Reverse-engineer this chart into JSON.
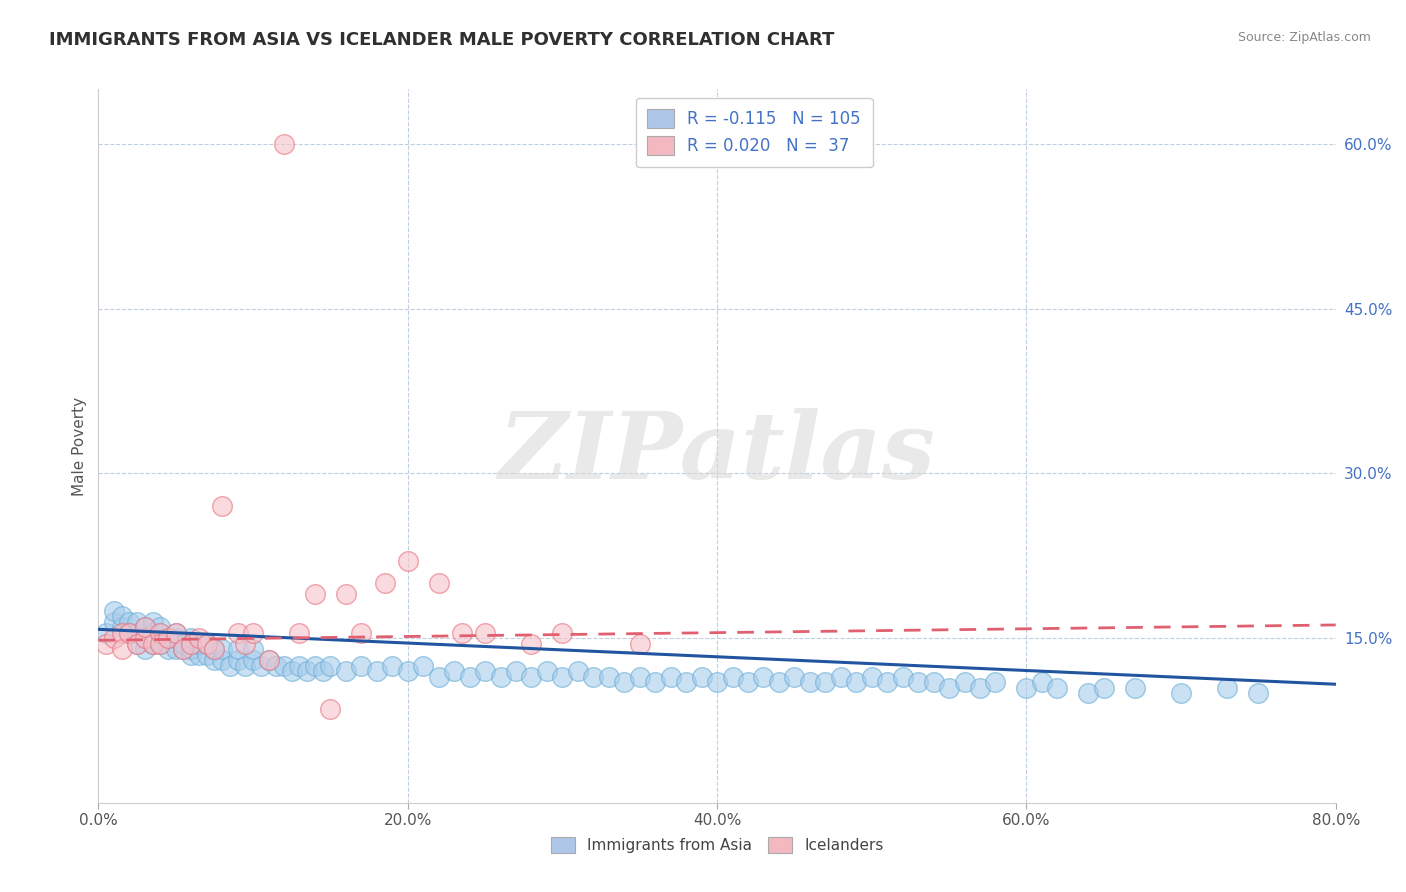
{
  "title": "IMMIGRANTS FROM ASIA VS ICELANDER MALE POVERTY CORRELATION CHART",
  "source_text": "Source: ZipAtlas.com",
  "ylabel": "Male Poverty",
  "xlim": [
    0.0,
    0.8
  ],
  "ylim": [
    0.0,
    0.65
  ],
  "xtick_labels": [
    "0.0%",
    "20.0%",
    "40.0%",
    "60.0%",
    "80.0%"
  ],
  "xtick_vals": [
    0.0,
    0.2,
    0.4,
    0.6,
    0.8
  ],
  "ytick_right_labels": [
    "15.0%",
    "30.0%",
    "45.0%",
    "60.0%"
  ],
  "ytick_right_vals": [
    0.15,
    0.3,
    0.45,
    0.6
  ],
  "legend_entries": [
    {
      "label": "Immigrants from Asia",
      "R": "-0.115",
      "N": "105",
      "patch_color": "#aec6e8",
      "dot_color": "#7ab8d9"
    },
    {
      "label": "Icelanders",
      "R": "0.020",
      "N": "37",
      "patch_color": "#f4b8c1",
      "dot_color": "#e88a95"
    }
  ],
  "watermark": "ZIPatlas",
  "background_color": "#ffffff",
  "grid_color": "#c0cfe0",
  "title_color": "#303030",
  "title_fontsize": 13,
  "R_N_color": "#4472c4",
  "blue_scatter_x": [
    0.005,
    0.01,
    0.01,
    0.015,
    0.015,
    0.02,
    0.02,
    0.025,
    0.025,
    0.025,
    0.03,
    0.03,
    0.03,
    0.035,
    0.035,
    0.035,
    0.04,
    0.04,
    0.04,
    0.045,
    0.045,
    0.05,
    0.05,
    0.05,
    0.055,
    0.055,
    0.06,
    0.06,
    0.06,
    0.065,
    0.065,
    0.07,
    0.07,
    0.075,
    0.075,
    0.08,
    0.08,
    0.085,
    0.09,
    0.09,
    0.095,
    0.1,
    0.1,
    0.105,
    0.11,
    0.115,
    0.12,
    0.125,
    0.13,
    0.135,
    0.14,
    0.145,
    0.15,
    0.16,
    0.17,
    0.18,
    0.19,
    0.2,
    0.21,
    0.22,
    0.23,
    0.24,
    0.25,
    0.26,
    0.27,
    0.28,
    0.29,
    0.3,
    0.31,
    0.32,
    0.33,
    0.34,
    0.35,
    0.36,
    0.37,
    0.38,
    0.39,
    0.4,
    0.41,
    0.42,
    0.43,
    0.44,
    0.45,
    0.46,
    0.47,
    0.48,
    0.49,
    0.5,
    0.51,
    0.52,
    0.53,
    0.54,
    0.55,
    0.56,
    0.57,
    0.58,
    0.6,
    0.61,
    0.62,
    0.64,
    0.65,
    0.67,
    0.7,
    0.73,
    0.75
  ],
  "blue_scatter_y": [
    0.155,
    0.165,
    0.175,
    0.16,
    0.17,
    0.155,
    0.165,
    0.145,
    0.155,
    0.165,
    0.14,
    0.15,
    0.16,
    0.145,
    0.155,
    0.165,
    0.145,
    0.155,
    0.16,
    0.14,
    0.15,
    0.14,
    0.15,
    0.155,
    0.14,
    0.145,
    0.135,
    0.14,
    0.15,
    0.135,
    0.145,
    0.135,
    0.145,
    0.13,
    0.14,
    0.13,
    0.14,
    0.125,
    0.13,
    0.14,
    0.125,
    0.13,
    0.14,
    0.125,
    0.13,
    0.125,
    0.125,
    0.12,
    0.125,
    0.12,
    0.125,
    0.12,
    0.125,
    0.12,
    0.125,
    0.12,
    0.125,
    0.12,
    0.125,
    0.115,
    0.12,
    0.115,
    0.12,
    0.115,
    0.12,
    0.115,
    0.12,
    0.115,
    0.12,
    0.115,
    0.115,
    0.11,
    0.115,
    0.11,
    0.115,
    0.11,
    0.115,
    0.11,
    0.115,
    0.11,
    0.115,
    0.11,
    0.115,
    0.11,
    0.11,
    0.115,
    0.11,
    0.115,
    0.11,
    0.115,
    0.11,
    0.11,
    0.105,
    0.11,
    0.105,
    0.11,
    0.105,
    0.11,
    0.105,
    0.1,
    0.105,
    0.105,
    0.1,
    0.105,
    0.1
  ],
  "pink_scatter_x": [
    0.005,
    0.01,
    0.015,
    0.015,
    0.02,
    0.025,
    0.03,
    0.03,
    0.035,
    0.04,
    0.04,
    0.045,
    0.05,
    0.055,
    0.06,
    0.065,
    0.07,
    0.075,
    0.08,
    0.09,
    0.095,
    0.1,
    0.11,
    0.12,
    0.13,
    0.14,
    0.15,
    0.16,
    0.17,
    0.185,
    0.2,
    0.22,
    0.235,
    0.25,
    0.28,
    0.3,
    0.35
  ],
  "pink_scatter_y": [
    0.145,
    0.15,
    0.155,
    0.14,
    0.155,
    0.145,
    0.15,
    0.16,
    0.145,
    0.155,
    0.145,
    0.15,
    0.155,
    0.14,
    0.145,
    0.15,
    0.145,
    0.14,
    0.27,
    0.155,
    0.145,
    0.155,
    0.13,
    0.6,
    0.155,
    0.19,
    0.085,
    0.19,
    0.155,
    0.2,
    0.22,
    0.2,
    0.155,
    0.155,
    0.145,
    0.155,
    0.145
  ],
  "blue_trend_x": [
    0.0,
    0.8
  ],
  "blue_trend_y": [
    0.158,
    0.108
  ],
  "pink_trend_x": [
    0.0,
    0.8
  ],
  "pink_trend_y": [
    0.148,
    0.162
  ]
}
